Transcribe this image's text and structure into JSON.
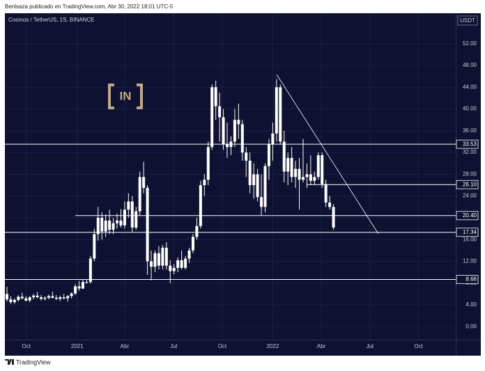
{
  "header": {
    "publisher": "Benlsaza publicado en TradingView.com, Abr 30, 2022 18:01 UTC-5"
  },
  "footer": {
    "brand": "TradingView"
  },
  "chart_data": {
    "type": "candlestick",
    "title": "Cosmos / TetherUS, 1S, BINANCE",
    "currency": "USDT",
    "watermark": "IN",
    "color": "#ffffff",
    "categories": [
      null,
      null,
      null,
      null,
      null,
      null,
      null,
      null,
      null,
      null,
      null,
      null,
      null,
      null,
      null,
      null,
      null,
      null,
      null,
      null,
      null,
      null,
      null,
      null,
      null,
      null,
      null,
      null,
      null,
      null,
      null,
      null,
      null,
      null,
      null,
      null,
      null,
      null,
      null,
      null,
      null,
      null,
      null,
      null,
      null,
      null,
      null,
      null,
      null,
      null,
      null,
      null,
      null,
      null,
      null,
      null,
      null,
      null,
      null,
      null,
      null,
      null,
      null,
      null,
      null,
      null,
      null,
      null,
      null,
      null,
      null,
      null,
      null,
      null,
      null,
      null,
      null,
      null,
      null,
      null,
      null,
      null,
      null,
      null,
      null,
      null,
      null
    ],
    "open": [
      6.0,
      5.0,
      4.5,
      4.9,
      5.5,
      5.2,
      4.8,
      5.4,
      5.7,
      5.4,
      5.1,
      5.3,
      5.6,
      5.3,
      5.1,
      5.4,
      5.2,
      5.6,
      6.1,
      7.4,
      7.0,
      8.2,
      8.2,
      12.5,
      17.0,
      20,
      17.5,
      19.5,
      17.8,
      19,
      19.5,
      18.6,
      21.5,
      23,
      18.2,
      21.2,
      27.5,
      25.5,
      12,
      11,
      13.5,
      11.2,
      14.5,
      11.2,
      10.2,
      10.8,
      12.2,
      10.8,
      12.5,
      14,
      16.5,
      18.5,
      26,
      27,
      33,
      44,
      40.5,
      38.5,
      33.5,
      33,
      34,
      38,
      37.2,
      32,
      30.5,
      26,
      28,
      23.8,
      22,
      29.5,
      33.5,
      35.5,
      44,
      34,
      28.5,
      31,
      27.5,
      29,
      27,
      27.5,
      28,
      26.8,
      27.5,
      31.5,
      26.2,
      22.8,
      22
    ],
    "high": [
      7.3,
      5.6,
      5.2,
      5.8,
      6.2,
      5.6,
      5.6,
      6.0,
      6.4,
      5.8,
      5.6,
      5.9,
      6.4,
      5.8,
      5.7,
      6.0,
      5.8,
      6.3,
      7.8,
      8.4,
      8.6,
      8.6,
      13.0,
      18.0,
      22.0,
      21,
      20.6,
      21.5,
      20.0,
      20.8,
      21.6,
      23,
      24.5,
      24,
      22,
      28.5,
      30.3,
      26,
      14,
      14,
      14.8,
      15,
      15.5,
      12.2,
      11.5,
      12.7,
      14,
      13,
      14.5,
      17,
      20,
      26.8,
      28,
      34,
      44.5,
      45.2,
      43,
      40,
      37.5,
      35,
      40,
      41,
      38,
      33,
      32,
      30,
      29,
      28,
      30,
      34.5,
      37.5,
      45.5,
      44.5,
      36,
      32,
      33,
      30.5,
      31,
      34.5,
      30,
      31.5,
      28.5,
      32,
      32,
      27,
      24,
      22.5
    ],
    "low": [
      4.6,
      4.2,
      4.2,
      4.6,
      5.0,
      4.6,
      4.5,
      5.0,
      5.2,
      4.8,
      4.8,
      5.0,
      5.2,
      4.9,
      4.7,
      5.0,
      4.6,
      5.2,
      5.8,
      6.6,
      6.9,
      7.9,
      7.9,
      12.0,
      15.8,
      16,
      16.5,
      17.0,
      17.0,
      18,
      18.2,
      18,
      20,
      17.4,
      17.8,
      20.5,
      24.5,
      9.5,
      8.5,
      10,
      10.5,
      10.5,
      10.5,
      8,
      9.6,
      10,
      10.5,
      10.5,
      11.7,
      13.5,
      16,
      18,
      24,
      26,
      32.5,
      38,
      34,
      32.5,
      31,
      31.5,
      33,
      34.5,
      30.5,
      27.5,
      24.5,
      23.5,
      23,
      20.5,
      21,
      27,
      30.5,
      34,
      33.5,
      26.5,
      26,
      26.5,
      25.5,
      21.5,
      26.5,
      25.5,
      26,
      26,
      27,
      25.5,
      22,
      21.5,
      17.8
    ],
    "close": [
      5.0,
      4.5,
      4.9,
      5.5,
      5.2,
      4.8,
      5.4,
      5.7,
      5.4,
      5.1,
      5.3,
      5.6,
      5.3,
      5.1,
      5.4,
      5.2,
      5.6,
      6.1,
      7.4,
      7.0,
      8.2,
      8.2,
      12.5,
      17.0,
      20.0,
      17.5,
      19.5,
      17.8,
      19.0,
      19.5,
      18.6,
      21.5,
      23,
      18.2,
      21.2,
      27.5,
      25.5,
      12.0,
      11,
      13.5,
      11.2,
      14.5,
      11.2,
      10.2,
      10.8,
      12.2,
      10.8,
      12.5,
      14,
      16.5,
      18.5,
      26,
      27,
      33,
      44,
      40.5,
      38.5,
      33.5,
      33,
      34,
      38,
      37.2,
      32,
      30.5,
      26,
      28,
      23.8,
      22,
      29.5,
      33.5,
      35.5,
      44,
      34,
      28.5,
      31,
      27.5,
      29,
      27,
      27.5,
      28,
      26.8,
      27.5,
      31.5,
      26.2,
      22.8,
      22,
      18.2
    ],
    "xlim": [
      -0.55,
      118.2
    ],
    "xticks": [
      {
        "value": 5.1,
        "label": "Oct"
      },
      {
        "value": 18.5,
        "label": "2021"
      },
      {
        "value": 31.0,
        "label": "Abr"
      },
      {
        "value": 43.9,
        "label": "Jul"
      },
      {
        "value": 56.7,
        "label": "Oct"
      },
      {
        "value": 70.0,
        "label": "2022"
      },
      {
        "value": 82.8,
        "label": "Abr"
      },
      {
        "value": 95.6,
        "label": "Jul"
      },
      {
        "value": 108.4,
        "label": "Oct"
      }
    ],
    "ylim": [
      -2.4,
      57.6
    ],
    "yticks": [
      {
        "value": 0,
        "label": "0.00"
      },
      {
        "value": 4,
        "label": "4.00"
      },
      {
        "value": 8,
        "label": "8.00"
      },
      {
        "value": 12,
        "label": "12.00"
      },
      {
        "value": 16,
        "label": "16.00"
      },
      {
        "value": 20,
        "label": "20.00"
      },
      {
        "value": 24,
        "label": "24.00"
      },
      {
        "value": 28,
        "label": "28.00"
      },
      {
        "value": 32,
        "label": "32.00"
      },
      {
        "value": 36,
        "label": "36.00"
      },
      {
        "value": 40,
        "label": "40.00"
      },
      {
        "value": 44,
        "label": "44.00"
      },
      {
        "value": 48,
        "label": "48.00"
      },
      {
        "value": 52,
        "label": "52.00"
      }
    ],
    "grid": true,
    "levels": [
      33.53,
      {
        "value": 26.1,
        "label": "26.10"
      },
      {
        "value": 20.4,
        "label": "20.40"
      },
      17.34,
      8.66
    ]
  }
}
